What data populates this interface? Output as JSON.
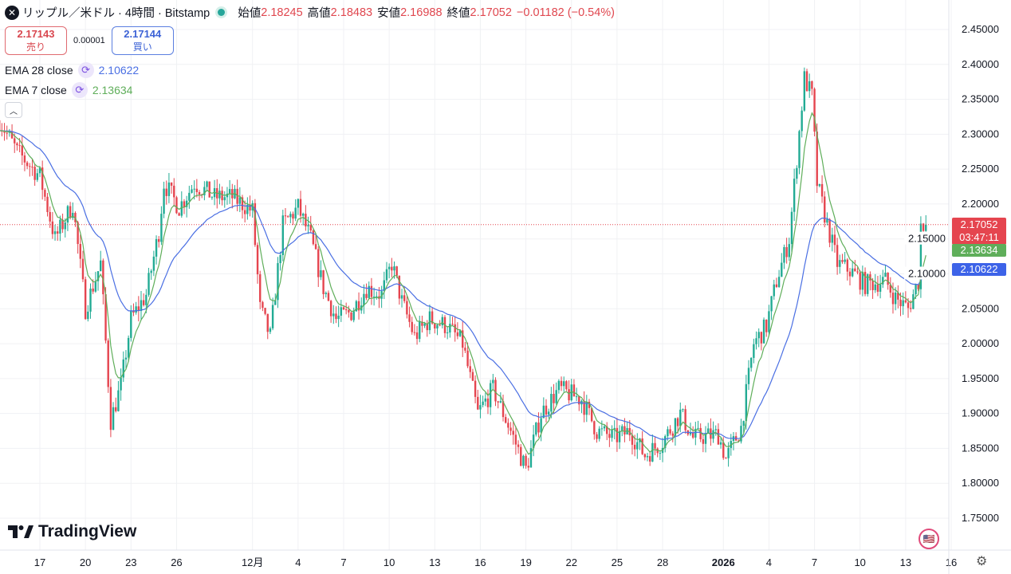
{
  "header": {
    "symbol_icon": "x-ripple-icon",
    "title": "リップル／米ドル · 4時間 · Bitstamp",
    "open_label": "始値",
    "open": "2.18245",
    "high_label": "高値",
    "high": "2.18483",
    "low_label": "安値",
    "low": "2.16988",
    "close_label": "終値",
    "close": "2.17052",
    "change": "−0.01182 (−0.54%)"
  },
  "trade": {
    "sell_price": "2.17143",
    "sell_label": "売り",
    "spread": "0.00001",
    "buy_price": "2.17144",
    "buy_label": "買い"
  },
  "indicators": [
    {
      "label": "EMA 28 close",
      "value": "2.10622",
      "color": "#4a6fe3"
    },
    {
      "label": "EMA 7 close",
      "value": "2.13634",
      "color": "#5fae5a"
    }
  ],
  "price_labels": {
    "last": "2.17052",
    "countdown": "03:47:11",
    "ema7": "2.13634",
    "ema28": "2.10622"
  },
  "brand": "TradingView",
  "colors": {
    "up": "#22ab94",
    "down": "#e5454f",
    "ema28": "#4a6fe3",
    "ema7": "#5fae5a"
  },
  "chart_data": {
    "type": "candlestick",
    "interval": "4h",
    "ylim": [
      1.72,
      2.47
    ],
    "yticks": [
      "2.45000",
      "2.40000",
      "2.35000",
      "2.30000",
      "2.25000",
      "2.20000",
      "2.15000",
      "2.10000",
      "2.05000",
      "2.00000",
      "1.95000",
      "1.90000",
      "1.85000",
      "1.80000",
      "1.75000"
    ],
    "xticks": [
      {
        "t": "2025-11-17",
        "label": "17"
      },
      {
        "t": "2025-11-20",
        "label": "20"
      },
      {
        "t": "2025-11-23",
        "label": "23"
      },
      {
        "t": "2025-11-26",
        "label": "26"
      },
      {
        "t": "2025-12-01",
        "label": "12月"
      },
      {
        "t": "2025-12-04",
        "label": "4"
      },
      {
        "t": "2025-12-07",
        "label": "7"
      },
      {
        "t": "2025-12-10",
        "label": "10"
      },
      {
        "t": "2025-12-13",
        "label": "13"
      },
      {
        "t": "2025-12-16",
        "label": "16"
      },
      {
        "t": "2025-12-19",
        "label": "19"
      },
      {
        "t": "2025-12-22",
        "label": "22"
      },
      {
        "t": "2025-12-25",
        "label": "25"
      },
      {
        "t": "2025-12-28",
        "label": "28"
      },
      {
        "t": "2026-01-01",
        "label": "2026"
      },
      {
        "t": "2026-01-04",
        "label": "4"
      },
      {
        "t": "2026-01-07",
        "label": "7"
      },
      {
        "t": "2026-01-10",
        "label": "10"
      },
      {
        "t": "2026-01-13",
        "label": "13"
      },
      {
        "t": "2026-01-16",
        "label": "16"
      }
    ],
    "close_path": [
      [
        "2025-11-14T08",
        2.32
      ],
      [
        "2025-11-15T12",
        2.275
      ],
      [
        "2025-11-17T00",
        2.24
      ],
      [
        "2025-11-18T00",
        2.15
      ],
      [
        "2025-11-19T04",
        2.2
      ],
      [
        "2025-11-20T00",
        2.05
      ],
      [
        "2025-11-21T00",
        2.115
      ],
      [
        "2025-11-21T16",
        1.89
      ],
      [
        "2025-11-22T08",
        1.94
      ],
      [
        "2025-11-23T00",
        2.035
      ],
      [
        "2025-11-24T00",
        2.07
      ],
      [
        "2025-11-24T20",
        2.16
      ],
      [
        "2025-11-25T04",
        2.23
      ],
      [
        "2025-11-26T04",
        2.195
      ],
      [
        "2025-11-27T04",
        2.23
      ],
      [
        "2025-11-28T12",
        2.21
      ],
      [
        "2025-11-29T16",
        2.21
      ],
      [
        "2025-12-01T00",
        2.19
      ],
      [
        "2025-12-01T12",
        2.05
      ],
      [
        "2025-12-02T04",
        2.01
      ],
      [
        "2025-12-03T00",
        2.17
      ],
      [
        "2025-12-04T00",
        2.195
      ],
      [
        "2025-12-04T20",
        2.15
      ],
      [
        "2025-12-05T16",
        2.08
      ],
      [
        "2025-12-06T12",
        2.035
      ],
      [
        "2025-12-07T12",
        2.045
      ],
      [
        "2025-12-08T12",
        2.08
      ],
      [
        "2025-12-09T12",
        2.07
      ],
      [
        "2025-12-10T04",
        2.115
      ],
      [
        "2025-12-10T20",
        2.06
      ],
      [
        "2025-12-11T16",
        2.01
      ],
      [
        "2025-12-12T16",
        2.035
      ],
      [
        "2025-12-13T20",
        2.025
      ],
      [
        "2025-12-14T20",
        2.0
      ],
      [
        "2025-12-15T20",
        1.9
      ],
      [
        "2025-12-16T20",
        1.935
      ],
      [
        "2025-12-18T00",
        1.875
      ],
      [
        "2025-12-19T00",
        1.82
      ],
      [
        "2025-12-20T00",
        1.9
      ],
      [
        "2025-12-21T04",
        1.935
      ],
      [
        "2025-12-22T16",
        1.92
      ],
      [
        "2025-12-23T16",
        1.875
      ],
      [
        "2025-12-24T20",
        1.865
      ],
      [
        "2025-12-25T20",
        1.875
      ],
      [
        "2025-12-26T20",
        1.84
      ],
      [
        "2025-12-28T00",
        1.86
      ],
      [
        "2025-12-29T04",
        1.9
      ],
      [
        "2025-12-30T00",
        1.865
      ],
      [
        "2025-12-31T16",
        1.87
      ],
      [
        "2026-01-01T04",
        1.835
      ],
      [
        "2026-01-02T04",
        1.88
      ],
      [
        "2026-01-03T00",
        2.0
      ],
      [
        "2026-01-03T20",
        2.025
      ],
      [
        "2026-01-04T12",
        2.09
      ],
      [
        "2026-01-05T08",
        2.15
      ],
      [
        "2026-01-05T20",
        2.265
      ],
      [
        "2026-01-06T08",
        2.38
      ],
      [
        "2026-01-06T20",
        2.355
      ],
      [
        "2026-01-07T04",
        2.23
      ],
      [
        "2026-01-07T16",
        2.185
      ],
      [
        "2026-01-08T12",
        2.115
      ],
      [
        "2026-01-09T08",
        2.105
      ],
      [
        "2026-01-10T08",
        2.085
      ],
      [
        "2026-01-11T16",
        2.09
      ],
      [
        "2026-01-12T08",
        2.065
      ],
      [
        "2026-01-13T04",
        2.05
      ],
      [
        "2026-01-13T20",
        2.09
      ],
      [
        "2026-01-14T00",
        2.17
      ],
      [
        "2026-01-14T08",
        2.17052
      ]
    ],
    "last_price": 2.17052,
    "series": [
      {
        "name": "EMA 28 close",
        "period": 28
      },
      {
        "name": "EMA 7 close",
        "period": 7
      }
    ],
    "grid": true
  }
}
